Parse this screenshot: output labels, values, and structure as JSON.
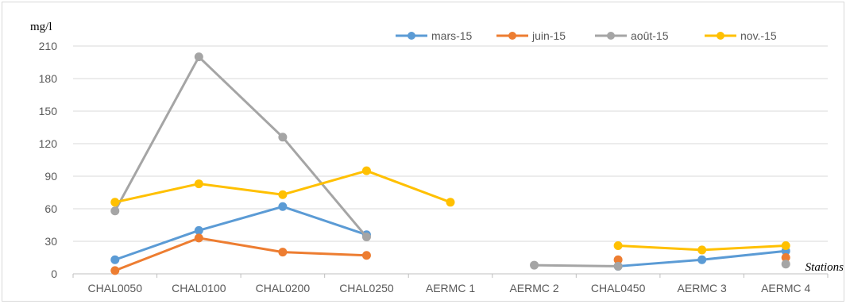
{
  "chart_data": {
    "type": "line",
    "ylabel": "mg/l",
    "xlabel": "Stations",
    "categories": [
      "CHAL0050",
      "CHAL0100",
      "CHAL0200",
      "CHAL0250",
      "AERMC 1",
      "AERMC 2",
      "CHAL0450",
      "AERMC 3",
      "AERMC 4"
    ],
    "ylim": [
      0,
      210
    ],
    "yticks": [
      0,
      30,
      60,
      90,
      120,
      150,
      180,
      210
    ],
    "grid": true,
    "legend_position": "top-right",
    "series": [
      {
        "name": "mars-15",
        "color": "#5b9bd5",
        "values": [
          13,
          40,
          62,
          36,
          null,
          null,
          7,
          13,
          21
        ]
      },
      {
        "name": "juin-15",
        "color": "#ed7d31",
        "values": [
          3,
          33,
          20,
          17,
          null,
          null,
          13,
          null,
          15
        ]
      },
      {
        "name": "août-15",
        "color": "#a5a5a5",
        "values": [
          58,
          200,
          126,
          34,
          null,
          8,
          7,
          null,
          9
        ]
      },
      {
        "name": "nov.-15",
        "color": "#ffc000",
        "values": [
          66,
          83,
          73,
          95,
          66,
          null,
          26,
          22,
          26
        ]
      }
    ]
  }
}
